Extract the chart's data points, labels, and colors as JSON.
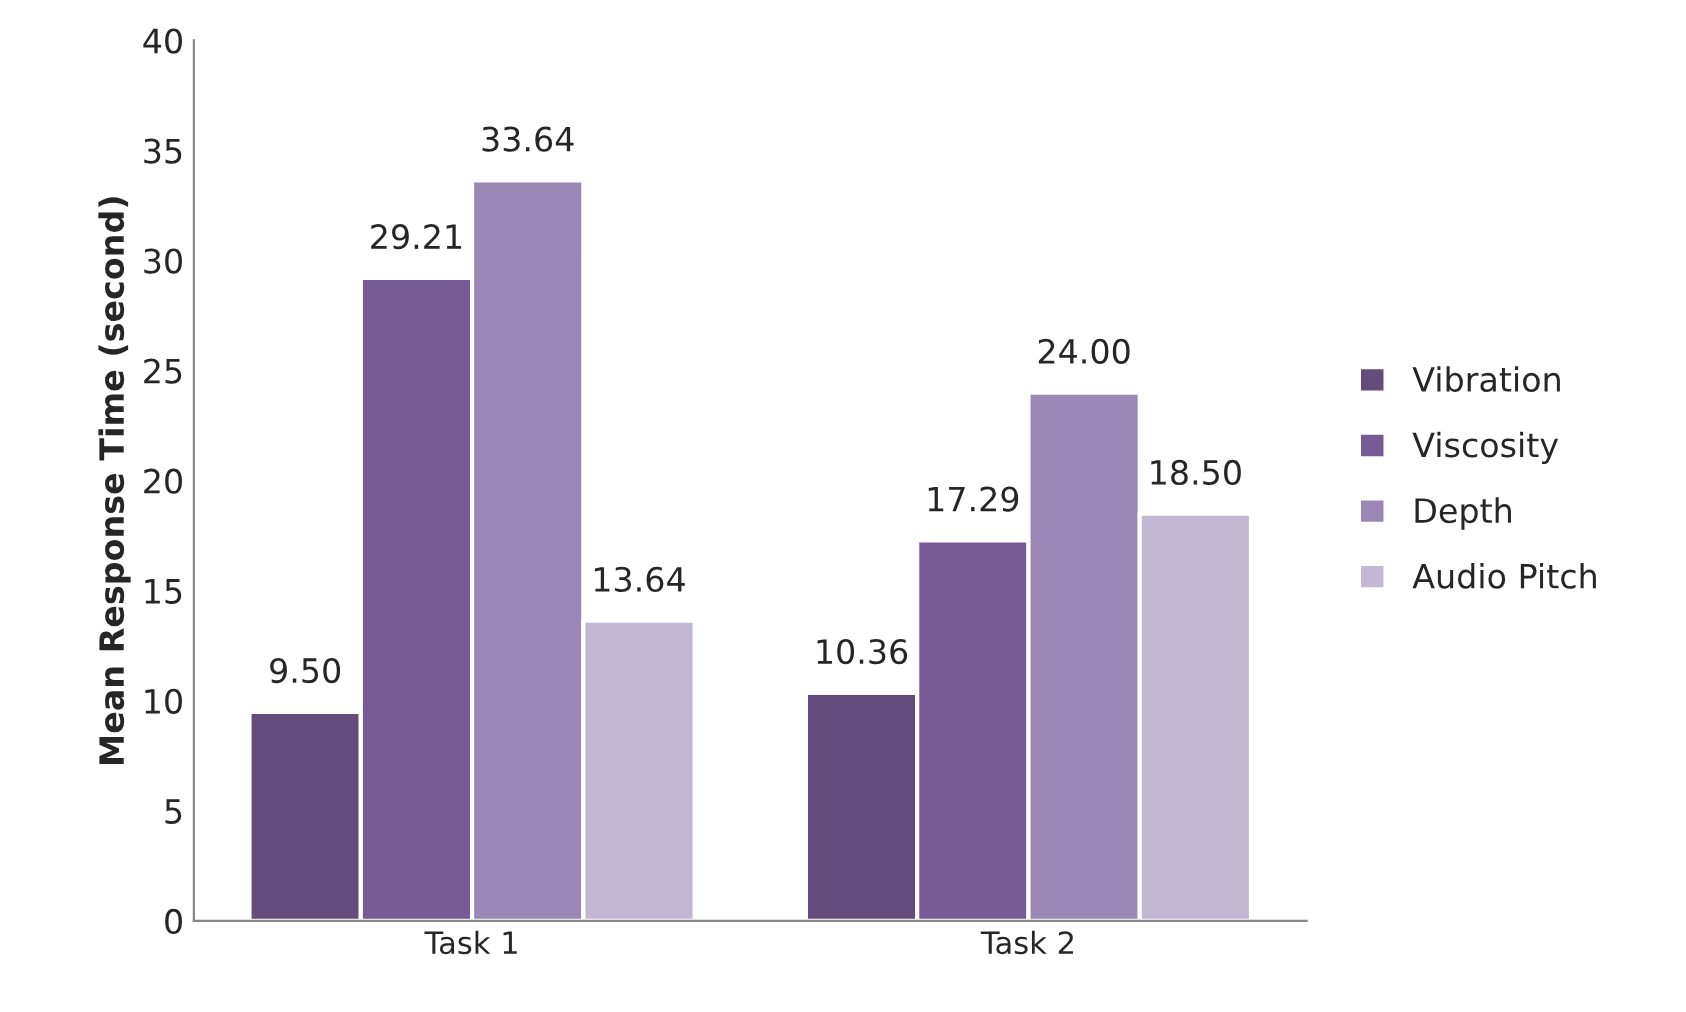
{
  "chart_data": {
    "type": "bar",
    "ylabel": "Mean Response Time (second)",
    "categories": [
      "Task 1",
      "Task 2"
    ],
    "series": [
      {
        "name": "Vibration",
        "color": "#634c7c",
        "values": [
          9.5,
          10.36
        ],
        "value_labels": [
          "9.50",
          "10.36"
        ]
      },
      {
        "name": "Viscosity",
        "color": "#765b97",
        "values": [
          29.21,
          17.29
        ],
        "value_labels": [
          "29.21",
          "17.29"
        ]
      },
      {
        "name": "Depth",
        "color": "#9b87b5",
        "values": [
          33.64,
          24.0
        ],
        "value_labels": [
          "33.64",
          "24.00"
        ]
      },
      {
        "name": "Audio Pitch",
        "color": "#c3b8d3",
        "values": [
          13.64,
          18.5
        ],
        "value_labels": [
          "13.64",
          "18.50"
        ]
      }
    ],
    "ylim": [
      0,
      40
    ],
    "yticks": [
      0,
      5,
      10,
      15,
      20,
      25,
      30,
      35,
      40
    ],
    "grid": false,
    "legend": "right"
  }
}
